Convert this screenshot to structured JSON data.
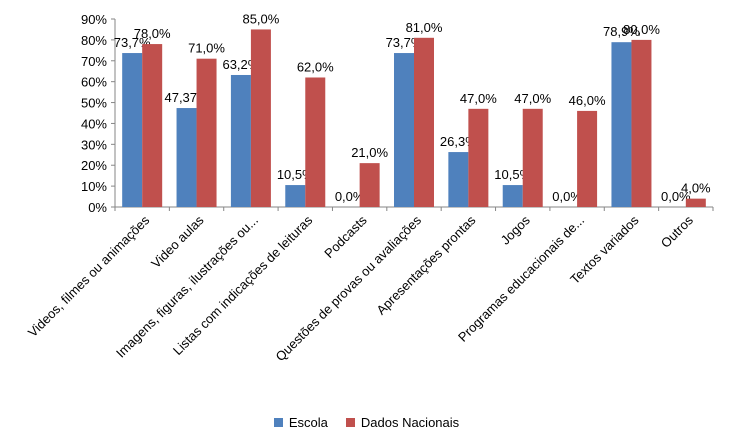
{
  "chart_data": {
    "type": "bar",
    "categories": [
      "Videos, filmes ou animações",
      "Video aulas",
      "Imagens, figuras, ilustrações ou...",
      "Listas com indicações de leituras",
      "Podcasts",
      "Questões de provas ou avaliações",
      "Apresentações prontas",
      "Jogos",
      "Programas educacionais de...",
      "Textos variados",
      "Outros"
    ],
    "series": [
      {
        "name": "Escola",
        "color": "#4F81BD",
        "values": [
          73.7,
          47.37,
          63.2,
          10.5,
          0.0,
          73.7,
          26.3,
          10.5,
          0.0,
          78.9,
          0.0
        ],
        "labels": [
          "73,7%",
          "47,37%",
          "63,2%",
          "10,5%",
          "0,0%",
          "73,7%",
          "26,3%",
          "10,5%",
          "0,0%",
          "78,9%",
          "0,0%"
        ]
      },
      {
        "name": "Dados Nacionais",
        "color": "#C0504D",
        "values": [
          78.0,
          71.0,
          85.0,
          62.0,
          21.0,
          81.0,
          47.0,
          47.0,
          46.0,
          80.0,
          4.0
        ],
        "labels": [
          "78,0%",
          "71,0%",
          "85,0%",
          "62,0%",
          "21,0%",
          "81,0%",
          "47,0%",
          "47,0%",
          "46,0%",
          "80,0%",
          "4,0%"
        ]
      }
    ],
    "ylim": [
      0,
      90
    ],
    "yticks": [
      "0%",
      "10%",
      "20%",
      "30%",
      "40%",
      "50%",
      "60%",
      "70%",
      "80%",
      "90%"
    ],
    "title": "",
    "xlabel": "",
    "ylabel": "",
    "grid": false,
    "legend_position": "bottom"
  }
}
